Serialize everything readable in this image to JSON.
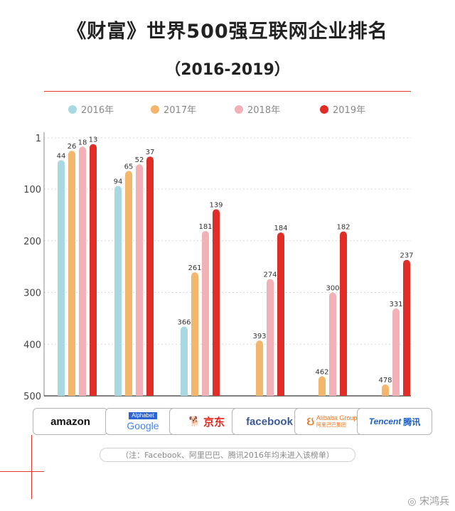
{
  "header": {
    "title": "《财富》世界500强互联网企业排名",
    "subtitle": "（2016-2019）"
  },
  "chart_data": {
    "type": "bar",
    "categories": [
      "Amazon",
      "Google",
      "京东",
      "Facebook",
      "Alibaba",
      "Tencent"
    ],
    "series": [
      {
        "name": "2016年",
        "color": "#a8d8e2",
        "values": [
          44,
          94,
          366,
          null,
          null,
          null
        ]
      },
      {
        "name": "2017年",
        "color": "#f2b76c",
        "values": [
          26,
          65,
          261,
          393,
          462,
          478
        ]
      },
      {
        "name": "2018年",
        "color": "#f2b1b7",
        "values": [
          18,
          52,
          181,
          274,
          300,
          331
        ]
      },
      {
        "name": "2019年",
        "color": "#e02d28",
        "values": [
          13,
          37,
          139,
          184,
          182,
          237
        ]
      }
    ],
    "ylim": [
      1,
      500
    ],
    "yticks": [
      1,
      100,
      200,
      300,
      400,
      500
    ],
    "y_inverted": true,
    "legend_position": "top",
    "grid": true
  },
  "logos": {
    "amazon": "amazon",
    "google_top": "Alphabet",
    "google": "Google",
    "jd": "京东",
    "facebook": "facebook",
    "alibaba": "Alibaba Group",
    "alibaba_sub": "阿里巴巴集团",
    "tencent_en": "Tencent",
    "tencent_cn": "腾讯"
  },
  "footnote": "（注：Facebook、阿里巴巴、腾讯2016年均未进入该榜单）",
  "watermark": "宋鸿兵"
}
